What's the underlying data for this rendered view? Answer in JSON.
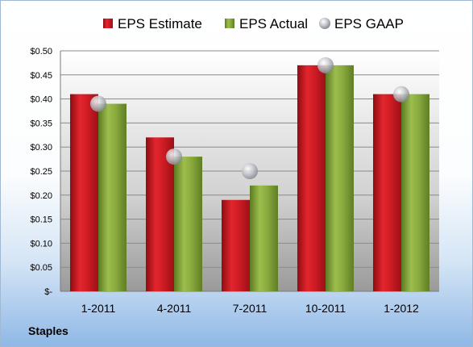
{
  "legend": {
    "items": [
      {
        "label": "EPS Estimate",
        "color": "#c7161e",
        "marker": "square"
      },
      {
        "label": "EPS Actual",
        "color": "#87a83a",
        "marker": "square"
      },
      {
        "label": "EPS GAAP",
        "color": "#b8bcc4",
        "marker": "circle"
      }
    ]
  },
  "company": "Staples",
  "chart_data": {
    "type": "bar",
    "categories": [
      "1-2011",
      "4-2011",
      "7-2011",
      "10-2011",
      "1-2012"
    ],
    "series": [
      {
        "name": "EPS Estimate",
        "type": "bar",
        "color": "#c7161e",
        "values": [
          0.41,
          0.32,
          0.19,
          0.47,
          0.41
        ]
      },
      {
        "name": "EPS Actual",
        "type": "bar",
        "color": "#87a83a",
        "values": [
          0.39,
          0.28,
          0.22,
          0.47,
          0.41
        ]
      },
      {
        "name": "EPS GAAP",
        "type": "scatter",
        "color": "#b8bcc4",
        "values": [
          0.39,
          0.28,
          0.25,
          0.47,
          0.41
        ]
      }
    ],
    "yticks": [
      "$-",
      "$0.05",
      "$0.10",
      "$0.15",
      "$0.20",
      "$0.25",
      "$0.30",
      "$0.35",
      "$0.40",
      "$0.45",
      "$0.50"
    ],
    "ylim": [
      0,
      0.5
    ],
    "grid": true,
    "legend_position": "top"
  }
}
